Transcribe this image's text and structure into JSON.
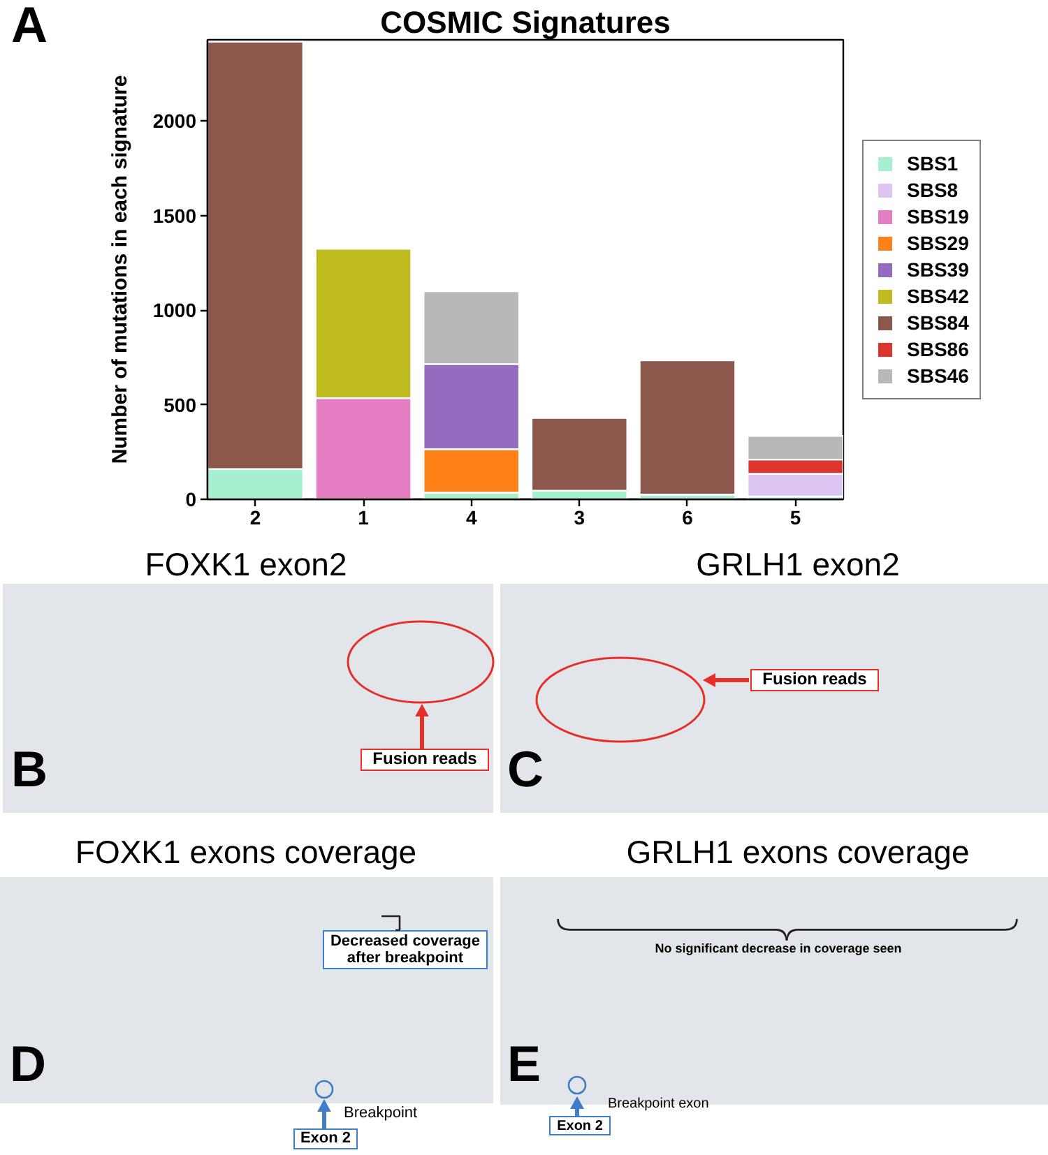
{
  "chart_data": [
    {
      "type": "bar",
      "title": "COSMIC Signatures",
      "ylabel": "Number of mutations in each signature",
      "categories": [
        "2",
        "1",
        "4",
        "3",
        "6",
        "5"
      ],
      "stacked": true,
      "ylim": [
        0,
        2430
      ],
      "yticks": [
        0,
        500,
        1000,
        1500,
        2000
      ],
      "legend": "right",
      "annotations": [
        "A"
      ],
      "series": [
        {
          "name": "SBS1",
          "color": "#a6f0d0",
          "values": [
            160,
            null,
            35,
            45,
            25,
            15
          ]
        },
        {
          "name": "SBS8",
          "color": "#dcc5f2",
          "values": [
            null,
            null,
            null,
            null,
            null,
            120
          ]
        },
        {
          "name": "SBS19",
          "color": "#e77ec3",
          "values": [
            null,
            535,
            null,
            null,
            null,
            null
          ]
        },
        {
          "name": "SBS29",
          "color": "#fd8117",
          "values": [
            null,
            null,
            230,
            null,
            null,
            null
          ]
        },
        {
          "name": "SBS39",
          "color": "#956bbf",
          "values": [
            null,
            null,
            450,
            null,
            null,
            null
          ]
        },
        {
          "name": "SBS42",
          "color": "#bfbb1f",
          "values": [
            null,
            790,
            null,
            null,
            null,
            null
          ]
        },
        {
          "name": "SBS84",
          "color": "#8d584c",
          "values": [
            2260,
            null,
            null,
            385,
            710,
            null
          ]
        },
        {
          "name": "SBS86",
          "color": "#dc3530",
          "values": [
            null,
            null,
            null,
            null,
            null,
            75
          ]
        },
        {
          "name": "SBS46",
          "color": "#b8b8b8",
          "values": [
            null,
            null,
            385,
            null,
            null,
            125
          ]
        }
      ]
    },
    {
      "type": "other",
      "title": "FOXK1 exon2",
      "annotations": [
        "B",
        "Fusion reads"
      ]
    },
    {
      "type": "other",
      "title": "GRLH1 exon2",
      "annotations": [
        "C",
        "Fusion reads"
      ]
    },
    {
      "type": "other",
      "title": "FOXK1 exons coverage",
      "annotations": [
        "D",
        "Decreased coverage after breakpoint",
        "Breakpoint",
        "Exon 2"
      ]
    },
    {
      "type": "other",
      "title": "GRLH1 exons coverage",
      "annotations": [
        "E",
        "No significant decrease in coverage seen",
        "Breakpoint exon",
        "Exon 2"
      ]
    }
  ]
}
